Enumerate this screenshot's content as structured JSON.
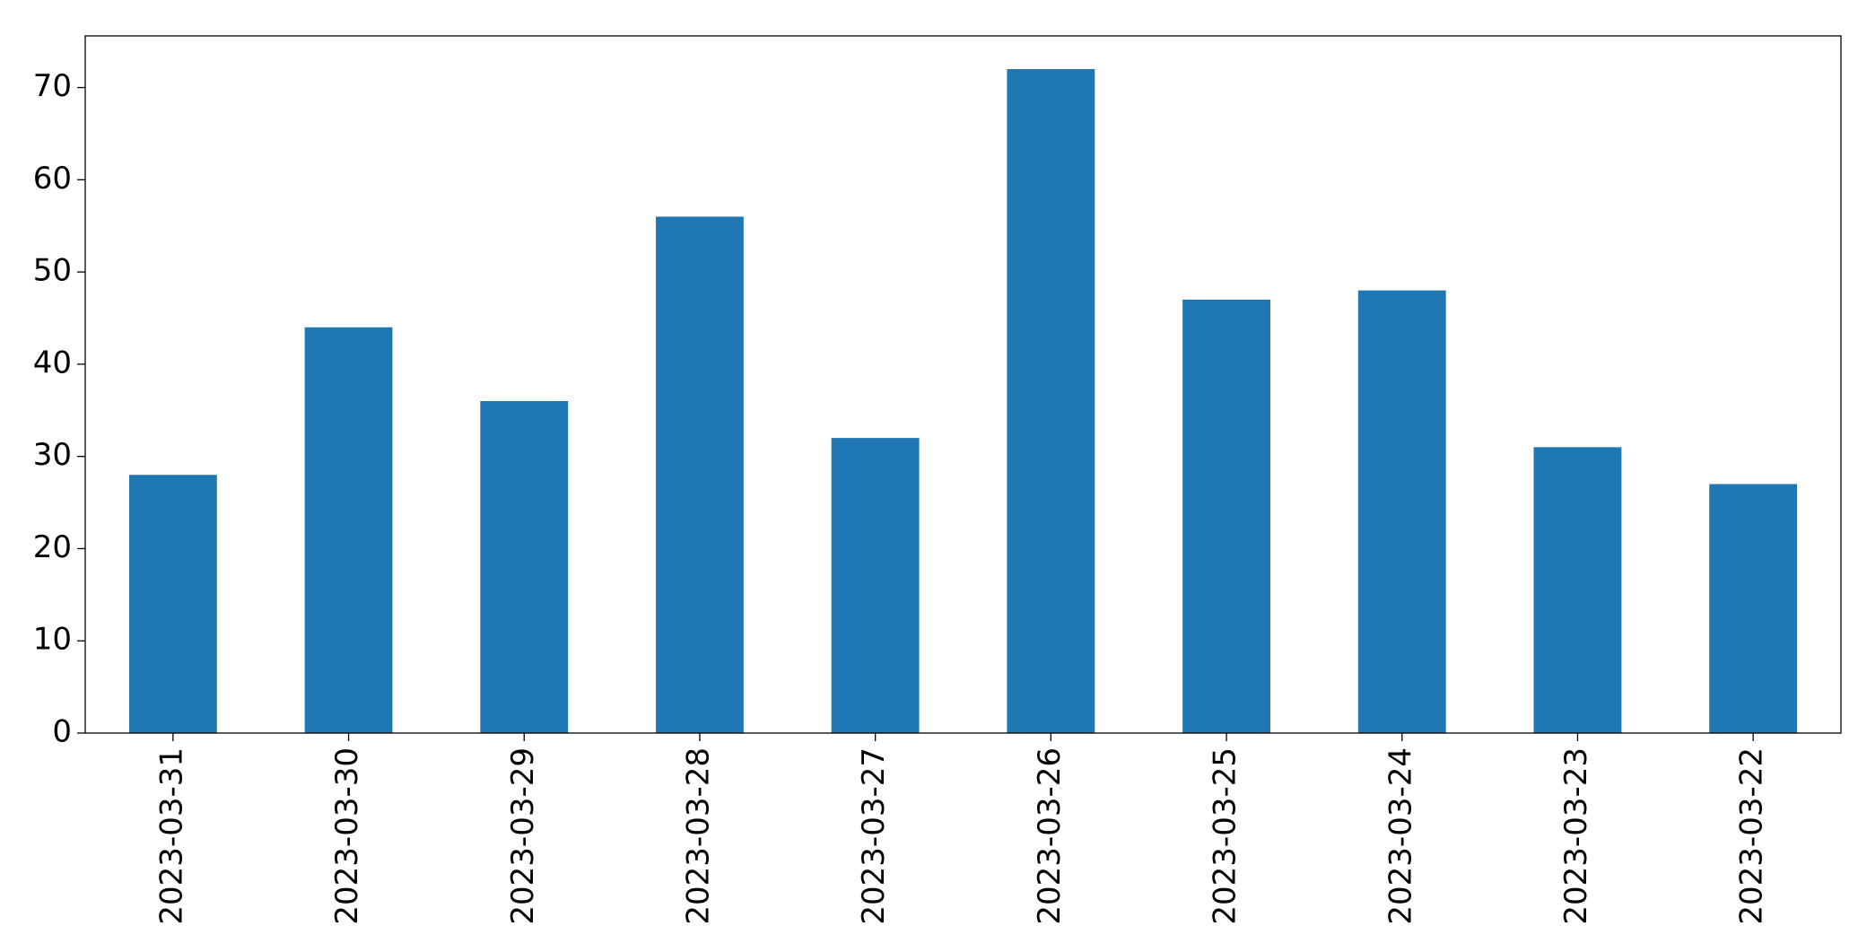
{
  "chart_data": {
    "type": "bar",
    "categories": [
      "2023-03-31",
      "2023-03-30",
      "2023-03-29",
      "2023-03-28",
      "2023-03-27",
      "2023-03-26",
      "2023-03-25",
      "2023-03-24",
      "2023-03-23",
      "2023-03-22"
    ],
    "values": [
      28,
      44,
      36,
      56,
      32,
      72,
      47,
      48,
      31,
      27
    ],
    "color": "#1f77b4",
    "ylim": [
      0,
      75.6
    ],
    "yticks": [
      0,
      10,
      20,
      30,
      40,
      50,
      60,
      70
    ],
    "grid": false
  }
}
